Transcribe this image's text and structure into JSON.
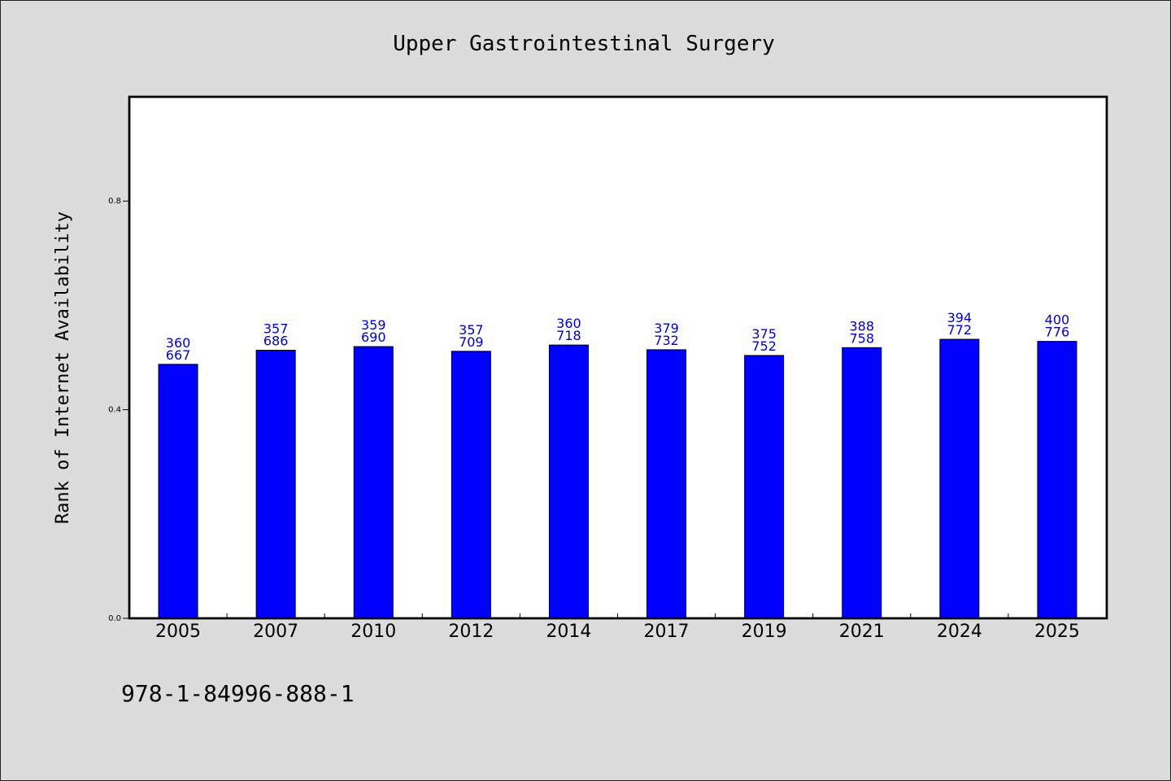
{
  "footer": {
    "code": "978-1-84996-888-1"
  },
  "colors": {
    "bar": "#0000ff",
    "bar_label": "#0000cc",
    "background": "#dcdcdc",
    "plot_bg": "#ffffff"
  },
  "chart_data": {
    "type": "bar",
    "title": "Upper Gastrointestinal Surgery",
    "xlabel": "",
    "ylabel": "Rank of Internet Availability",
    "ylim": [
      0.0,
      1.0
    ],
    "yticks": [
      0.0,
      0.4,
      0.8
    ],
    "ytick_labels": [
      "0.0",
      "0.4",
      "0.8"
    ],
    "grid": false,
    "categories": [
      "2005",
      "2007",
      "2010",
      "2012",
      "2014",
      "2017",
      "2019",
      "2021",
      "2024",
      "2025"
    ],
    "values": [
      0.487,
      0.514,
      0.521,
      0.512,
      0.524,
      0.515,
      0.504,
      0.519,
      0.535,
      0.531
    ],
    "label_top": [
      "360",
      "357",
      "359",
      "357",
      "360",
      "379",
      "375",
      "388",
      "394",
      "400"
    ],
    "label_bottom": [
      "667",
      "686",
      "690",
      "709",
      "718",
      "732",
      "752",
      "758",
      "772",
      "776"
    ]
  }
}
